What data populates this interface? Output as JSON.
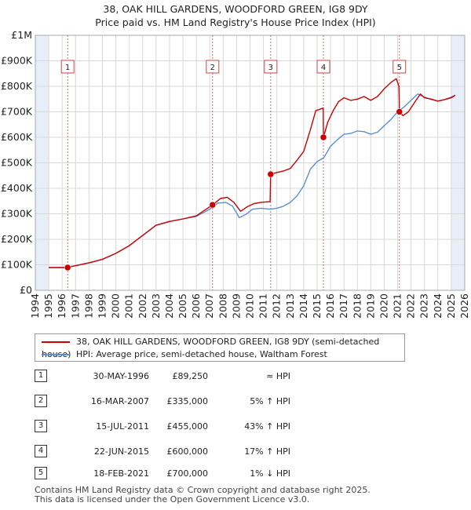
{
  "title_line1": "38, OAK HILL GARDENS, WOODFORD GREEN, IG8 9DY",
  "title_line2": "Price paid vs. HM Land Registry's House Price Index (HPI)",
  "legend": {
    "property_label": "38, OAK HILL GARDENS, WOODFORD GREEN, IG8 9DY (semi-detached house)",
    "hpi_label": "HPI: Average price, semi-detached house, Waltham Forest"
  },
  "sales": [
    {
      "num": "1",
      "date": "30-MAY-1996",
      "price": "£89,250",
      "relation": "≈ HPI"
    },
    {
      "num": "2",
      "date": "16-MAR-2007",
      "price": "£335,000",
      "relation": "5% ↑ HPI"
    },
    {
      "num": "3",
      "date": "15-JUL-2011",
      "price": "£455,000",
      "relation": "43% ↑ HPI"
    },
    {
      "num": "4",
      "date": "22-JUN-2015",
      "price": "£600,000",
      "relation": "17% ↑ HPI"
    },
    {
      "num": "5",
      "date": "18-FEB-2021",
      "price": "£700,000",
      "relation": "1% ↓ HPI"
    }
  ],
  "footer_line1": "Contains HM Land Registry data © Crown copyright and database right 2025.",
  "footer_line2": "This data is licensed under the Open Government Licence v3.0.",
  "colors": {
    "property": "#cc0000",
    "hpi": "#5b8fd1",
    "shade": "#e8eef8",
    "grid": "#d8d8d8"
  },
  "chart_data": {
    "type": "line",
    "xlim": [
      1994,
      2026
    ],
    "ylim": [
      0,
      1000000
    ],
    "y_ticks": [
      0,
      100000,
      200000,
      300000,
      400000,
      500000,
      600000,
      700000,
      800000,
      900000,
      1000000
    ],
    "y_tick_labels": [
      "£0",
      "£100K",
      "£200K",
      "£300K",
      "£400K",
      "£500K",
      "£600K",
      "£700K",
      "£800K",
      "£900K",
      "£1M"
    ],
    "x_ticks": [
      1994,
      1995,
      1996,
      1997,
      1998,
      1999,
      2000,
      2001,
      2002,
      2003,
      2004,
      2005,
      2006,
      2007,
      2008,
      2009,
      2010,
      2011,
      2012,
      2013,
      2014,
      2015,
      2016,
      2017,
      2018,
      2019,
      2020,
      2021,
      2022,
      2023,
      2024,
      2025,
      2026
    ],
    "grid": true,
    "legend_position": "below",
    "sale_markers": [
      {
        "label": "1",
        "x": 1996.41,
        "y": 89250
      },
      {
        "label": "2",
        "x": 2007.21,
        "y": 335000
      },
      {
        "label": "3",
        "x": 2011.54,
        "y": 455000
      },
      {
        "label": "4",
        "x": 2015.47,
        "y": 600000
      },
      {
        "label": "5",
        "x": 2021.13,
        "y": 700000
      }
    ],
    "shaded_ranges": [
      [
        1994.0,
        1995.0
      ],
      [
        2025.0,
        2026.0
      ]
    ],
    "series": [
      {
        "name": "38, OAK HILL GARDENS, WOODFORD GREEN, IG8 9DY (semi-detached house)",
        "points": [
          [
            1995.0,
            89250
          ],
          [
            1996.41,
            89250
          ],
          [
            1997.0,
            97000
          ],
          [
            1998.0,
            108000
          ],
          [
            1999.0,
            122000
          ],
          [
            2000.0,
            145000
          ],
          [
            2001.0,
            175000
          ],
          [
            2002.0,
            215000
          ],
          [
            2003.0,
            255000
          ],
          [
            2004.0,
            270000
          ],
          [
            2005.0,
            280000
          ],
          [
            2006.0,
            292000
          ],
          [
            2007.21,
            335000
          ],
          [
            2007.8,
            360000
          ],
          [
            2008.3,
            365000
          ],
          [
            2008.8,
            345000
          ],
          [
            2009.3,
            310000
          ],
          [
            2009.8,
            328000
          ],
          [
            2010.3,
            340000
          ],
          [
            2010.8,
            345000
          ],
          [
            2011.5,
            348000
          ],
          [
            2011.54,
            455000
          ],
          [
            2012.0,
            462000
          ],
          [
            2012.5,
            468000
          ],
          [
            2013.0,
            478000
          ],
          [
            2013.5,
            510000
          ],
          [
            2014.0,
            545000
          ],
          [
            2014.5,
            630000
          ],
          [
            2014.9,
            705000
          ],
          [
            2015.2,
            710000
          ],
          [
            2015.46,
            715000
          ],
          [
            2015.47,
            600000
          ],
          [
            2015.8,
            660000
          ],
          [
            2016.2,
            705000
          ],
          [
            2016.6,
            740000
          ],
          [
            2017.0,
            755000
          ],
          [
            2017.5,
            745000
          ],
          [
            2018.0,
            750000
          ],
          [
            2018.5,
            760000
          ],
          [
            2019.0,
            745000
          ],
          [
            2019.5,
            760000
          ],
          [
            2020.0,
            790000
          ],
          [
            2020.5,
            815000
          ],
          [
            2020.9,
            830000
          ],
          [
            2021.1,
            800000
          ],
          [
            2021.13,
            700000
          ],
          [
            2021.4,
            685000
          ],
          [
            2021.8,
            700000
          ],
          [
            2022.3,
            740000
          ],
          [
            2022.7,
            770000
          ],
          [
            2023.0,
            755000
          ],
          [
            2023.5,
            750000
          ],
          [
            2024.0,
            742000
          ],
          [
            2024.5,
            748000
          ],
          [
            2025.0,
            755000
          ],
          [
            2025.3,
            765000
          ]
        ]
      },
      {
        "name": "HPI: Average price, semi-detached house, Waltham Forest",
        "points": [
          [
            1995.0,
            89000
          ],
          [
            1996.0,
            89000
          ],
          [
            1997.0,
            96000
          ],
          [
            1998.0,
            107000
          ],
          [
            1999.0,
            121000
          ],
          [
            2000.0,
            145000
          ],
          [
            2001.0,
            175000
          ],
          [
            2002.0,
            215000
          ],
          [
            2003.0,
            255000
          ],
          [
            2004.0,
            270000
          ],
          [
            2005.0,
            280000
          ],
          [
            2006.0,
            290000
          ],
          [
            2007.0,
            318000
          ],
          [
            2007.6,
            342000
          ],
          [
            2008.2,
            345000
          ],
          [
            2008.7,
            330000
          ],
          [
            2009.2,
            285000
          ],
          [
            2009.7,
            298000
          ],
          [
            2010.2,
            318000
          ],
          [
            2010.8,
            322000
          ],
          [
            2011.5,
            318000
          ],
          [
            2012.0,
            322000
          ],
          [
            2012.5,
            330000
          ],
          [
            2013.0,
            345000
          ],
          [
            2013.5,
            370000
          ],
          [
            2014.0,
            410000
          ],
          [
            2014.5,
            475000
          ],
          [
            2015.0,
            505000
          ],
          [
            2015.5,
            520000
          ],
          [
            2016.0,
            565000
          ],
          [
            2016.5,
            590000
          ],
          [
            2017.0,
            612000
          ],
          [
            2017.5,
            615000
          ],
          [
            2018.0,
            625000
          ],
          [
            2018.5,
            622000
          ],
          [
            2019.0,
            612000
          ],
          [
            2019.5,
            620000
          ],
          [
            2020.0,
            645000
          ],
          [
            2020.5,
            670000
          ],
          [
            2021.0,
            700000
          ],
          [
            2021.5,
            720000
          ],
          [
            2022.0,
            745000
          ],
          [
            2022.5,
            770000
          ],
          [
            2023.0,
            758000
          ],
          [
            2023.5,
            748000
          ],
          [
            2024.0,
            742000
          ],
          [
            2024.5,
            748000
          ],
          [
            2025.0,
            758000
          ],
          [
            2025.3,
            765000
          ]
        ]
      }
    ]
  }
}
